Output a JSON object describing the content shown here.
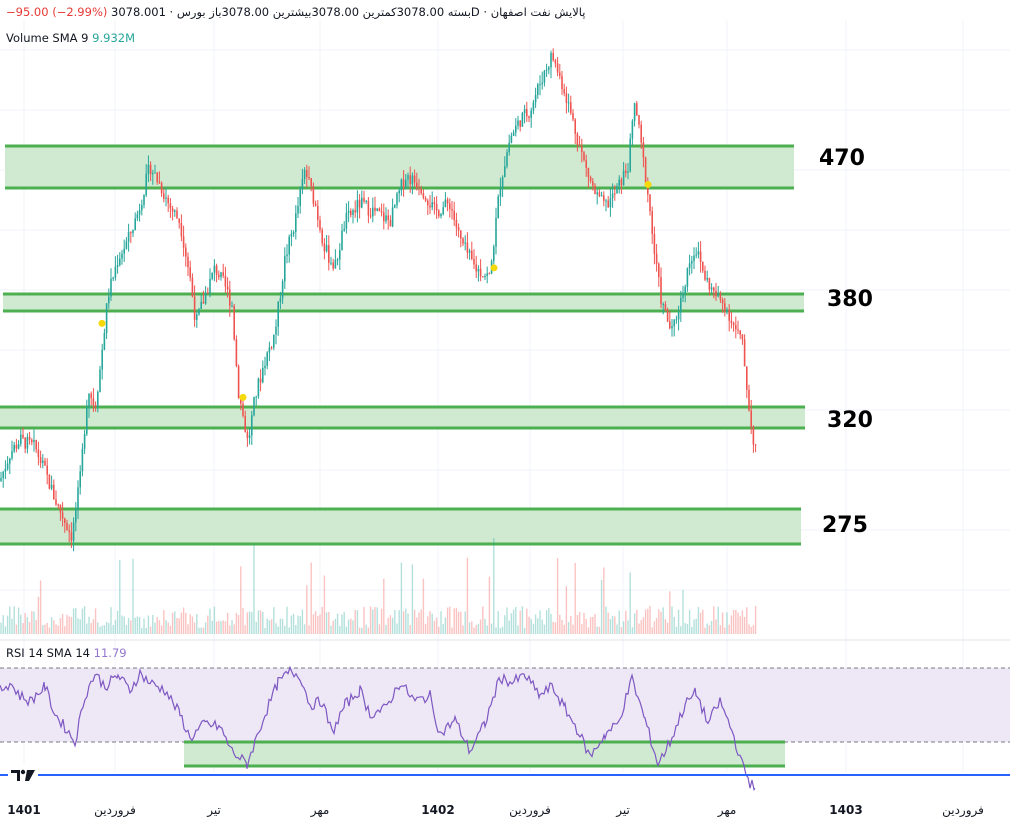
{
  "header": {
    "symbol_name": "پالایش نفت اصفهان",
    "interval": "1D",
    "exchange": "بورس",
    "open_label": "باز",
    "open_value": "3078.00",
    "high_label": "بیشترین",
    "high_value": "3078.00",
    "low_label": "کمترین",
    "low_value": "3078.00",
    "close_label": "بسته",
    "close_value": "3078.00",
    "change": "−95.00 (−2.99%)"
  },
  "volume_legend": {
    "label": "Volume SMA 9",
    "value": "9.932M"
  },
  "rsi_legend": {
    "label": "RSI 14 SMA 14",
    "value": "11.79"
  },
  "levels": [
    {
      "label": "470"
    },
    {
      "label": "380"
    },
    {
      "label": "320"
    },
    {
      "label": "275"
    }
  ],
  "time_axis": [
    {
      "label": "1401",
      "bold": true
    },
    {
      "label": "فروردین",
      "bold": false
    },
    {
      "label": "تیر",
      "bold": false
    },
    {
      "label": "مهر",
      "bold": false
    },
    {
      "label": "1402",
      "bold": true
    },
    {
      "label": "فروردین",
      "bold": false
    },
    {
      "label": "تیر",
      "bold": false
    },
    {
      "label": "مهر",
      "bold": false
    },
    {
      "label": "1403",
      "bold": true
    },
    {
      "label": "فروردین",
      "bold": false
    }
  ],
  "colors": {
    "up": "#26a69a",
    "down": "#ef5350",
    "zone_fill": "#c8e6c9",
    "zone_border": "#4caf50",
    "rsi_line": "#7e57c2",
    "rsi_band": "#ede7f6",
    "marker": "#f5d90a"
  },
  "chart_data": {
    "type": "candlestick",
    "x_range": [
      "1401",
      "1403 فروردین"
    ],
    "price_path": [
      [
        0,
        300
      ],
      [
        10,
        315
      ],
      [
        20,
        322
      ],
      [
        35,
        318
      ],
      [
        45,
        305
      ],
      [
        55,
        290
      ],
      [
        65,
        278
      ],
      [
        72,
        270
      ],
      [
        80,
        300
      ],
      [
        88,
        350
      ],
      [
        95,
        340
      ],
      [
        100,
        360
      ],
      [
        108,
        400
      ],
      [
        118,
        420
      ],
      [
        128,
        430
      ],
      [
        138,
        445
      ],
      [
        150,
        470
      ],
      [
        160,
        460
      ],
      [
        170,
        448
      ],
      [
        180,
        440
      ],
      [
        190,
        410
      ],
      [
        196,
        385
      ],
      [
        205,
        400
      ],
      [
        215,
        415
      ],
      [
        225,
        405
      ],
      [
        232,
        395
      ],
      [
        238,
        350
      ],
      [
        248,
        320
      ],
      [
        255,
        345
      ],
      [
        265,
        365
      ],
      [
        275,
        380
      ],
      [
        285,
        420
      ],
      [
        295,
        440
      ],
      [
        305,
        468
      ],
      [
        315,
        450
      ],
      [
        325,
        425
      ],
      [
        335,
        415
      ],
      [
        345,
        440
      ],
      [
        360,
        450
      ],
      [
        375,
        445
      ],
      [
        390,
        440
      ],
      [
        405,
        465
      ],
      [
        420,
        460
      ],
      [
        435,
        445
      ],
      [
        450,
        450
      ],
      [
        460,
        430
      ],
      [
        475,
        415
      ],
      [
        490,
        410
      ],
      [
        500,
        460
      ],
      [
        510,
        485
      ],
      [
        520,
        495
      ],
      [
        530,
        500
      ],
      [
        540,
        515
      ],
      [
        552,
        530
      ],
      [
        565,
        510
      ],
      [
        575,
        490
      ],
      [
        585,
        470
      ],
      [
        595,
        455
      ],
      [
        605,
        448
      ],
      [
        615,
        455
      ],
      [
        628,
        470
      ],
      [
        635,
        505
      ],
      [
        640,
        485
      ],
      [
        648,
        455
      ],
      [
        655,
        420
      ],
      [
        662,
        395
      ],
      [
        672,
        380
      ],
      [
        682,
        400
      ],
      [
        690,
        420
      ],
      [
        696,
        425
      ],
      [
        705,
        410
      ],
      [
        715,
        400
      ],
      [
        725,
        395
      ],
      [
        735,
        382
      ],
      [
        742,
        375
      ],
      [
        748,
        345
      ],
      [
        752,
        325
      ],
      [
        756,
        318
      ]
    ],
    "markers": [
      [
        102,
        385
      ],
      [
        243,
        345
      ],
      [
        494,
        415
      ],
      [
        648,
        460
      ]
    ],
    "rsi_values": [
      [
        0,
        58
      ],
      [
        10,
        62
      ],
      [
        20,
        55
      ],
      [
        30,
        52
      ],
      [
        45,
        60
      ],
      [
        55,
        45
      ],
      [
        65,
        38
      ],
      [
        75,
        30
      ],
      [
        85,
        55
      ],
      [
        95,
        67
      ],
      [
        105,
        60
      ],
      [
        118,
        66
      ],
      [
        130,
        58
      ],
      [
        140,
        67
      ],
      [
        150,
        62
      ],
      [
        165,
        58
      ],
      [
        180,
        45
      ],
      [
        190,
        32
      ],
      [
        205,
        40
      ],
      [
        220,
        38
      ],
      [
        232,
        25
      ],
      [
        247,
        18
      ],
      [
        255,
        30
      ],
      [
        265,
        45
      ],
      [
        278,
        62
      ],
      [
        290,
        68
      ],
      [
        300,
        66
      ],
      [
        310,
        50
      ],
      [
        322,
        52
      ],
      [
        332,
        35
      ],
      [
        345,
        50
      ],
      [
        360,
        58
      ],
      [
        370,
        45
      ],
      [
        385,
        48
      ],
      [
        400,
        62
      ],
      [
        415,
        52
      ],
      [
        430,
        55
      ],
      [
        440,
        34
      ],
      [
        455,
        42
      ],
      [
        470,
        25
      ],
      [
        485,
        40
      ],
      [
        500,
        65
      ],
      [
        512,
        62
      ],
      [
        525,
        66
      ],
      [
        540,
        55
      ],
      [
        552,
        60
      ],
      [
        565,
        48
      ],
      [
        578,
        36
      ],
      [
        590,
        22
      ],
      [
        605,
        34
      ],
      [
        618,
        40
      ],
      [
        632,
        64
      ],
      [
        645,
        42
      ],
      [
        658,
        18
      ],
      [
        670,
        30
      ],
      [
        685,
        50
      ],
      [
        696,
        57
      ],
      [
        708,
        40
      ],
      [
        720,
        52
      ],
      [
        732,
        36
      ],
      [
        742,
        18
      ],
      [
        750,
        8
      ],
      [
        755,
        5
      ]
    ],
    "rsi_levels": [
      70,
      30
    ],
    "price_levels": [
      470,
      380,
      320,
      275
    ]
  }
}
